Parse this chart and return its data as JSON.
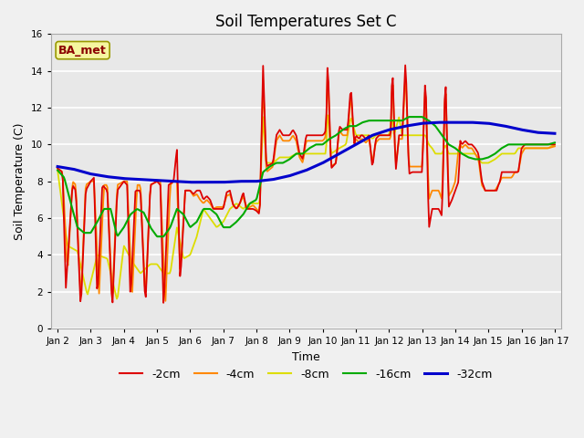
{
  "title": "Soil Temperatures Set C",
  "xlabel": "Time",
  "ylabel": "Soil Temperature (C)",
  "ylim": [
    0,
    16
  ],
  "yticks": [
    0,
    2,
    4,
    6,
    8,
    10,
    12,
    14,
    16
  ],
  "background_color": "#f0f0f0",
  "plot_bg_color": "#e8e8e8",
  "annotation_text": "BA_met",
  "annotation_color": "#8b0000",
  "annotation_bg": "#f5f5a0",
  "annotation_border": "#999900",
  "series_colors": [
    "#dd0000",
    "#ff8800",
    "#dddd00",
    "#00aa00",
    "#0000cc"
  ],
  "series_lw": [
    1.3,
    1.3,
    1.3,
    1.5,
    2.2
  ],
  "xtick_labels": [
    "Jan 2",
    "Jan 3",
    "Jan 4",
    "Jan 5",
    "Jan 6",
    "Jan 7",
    "Jan 8",
    "Jan 9",
    "Jan 10",
    "Jan 11",
    "Jan 12",
    "Jan 13",
    "Jan 14",
    "Jan 15",
    "Jan 16",
    "Jan 17"
  ],
  "xtick_positions": [
    0,
    1,
    2,
    3,
    4,
    5,
    6,
    7,
    8,
    9,
    10,
    11,
    12,
    13,
    14,
    15
  ],
  "legend_colors": [
    "#dd0000",
    "#ff8800",
    "#dddd00",
    "#00aa00",
    "#0000cc"
  ],
  "legend_labels": [
    "-2cm",
    "-4cm",
    "-8cm",
    "-16cm",
    "-32cm"
  ]
}
